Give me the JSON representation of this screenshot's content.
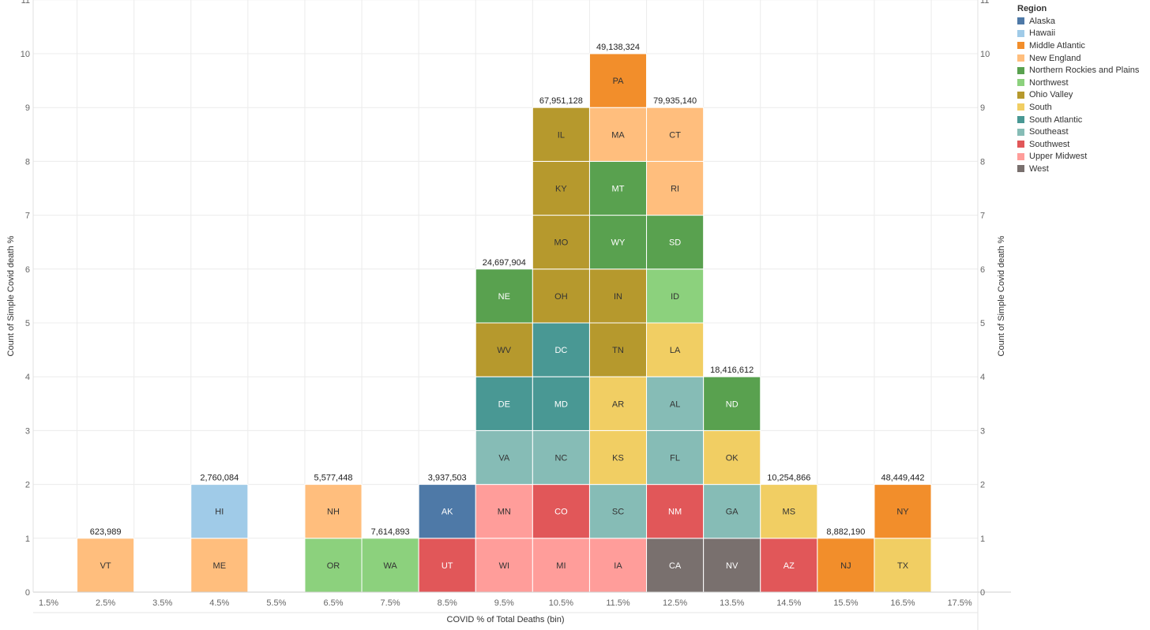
{
  "chart_data": {
    "type": "bar",
    "stacked": true,
    "xlabel": "COVID % of Total Deaths (bin)",
    "ylabel": "Count of Simple Covid death %",
    "ylabel_right": "Count of Simple Covid death %",
    "ylim": [
      0,
      11
    ],
    "yticks": [
      0,
      1,
      2,
      3,
      4,
      5,
      6,
      7,
      8,
      9,
      10,
      11
    ],
    "xticks": [
      "1.5%",
      "2.5%",
      "3.5%",
      "4.5%",
      "5.5%",
      "6.5%",
      "7.5%",
      "8.5%",
      "9.5%",
      "10.5%",
      "11.5%",
      "12.5%",
      "13.5%",
      "14.5%",
      "15.5%",
      "16.5%",
      "17.5%"
    ],
    "grid": true,
    "legend_position": "right",
    "legend_title": "Region",
    "regions": [
      {
        "name": "Alaska",
        "color": "#4e79a7"
      },
      {
        "name": "Hawaii",
        "color": "#a0cbe8"
      },
      {
        "name": "Middle Atlantic",
        "color": "#f28e2b"
      },
      {
        "name": "New England",
        "color": "#ffbe7d"
      },
      {
        "name": "Northern Rockies and Plains",
        "color": "#59a14f"
      },
      {
        "name": "Northwest",
        "color": "#8cd17d"
      },
      {
        "name": "Ohio Valley",
        "color": "#b6992d"
      },
      {
        "name": "South",
        "color": "#f1ce63"
      },
      {
        "name": "South Atlantic",
        "color": "#499894"
      },
      {
        "name": "Southeast",
        "color": "#86bcb6"
      },
      {
        "name": "Southwest",
        "color": "#e15759"
      },
      {
        "name": "Upper Midwest",
        "color": "#ff9d9a"
      },
      {
        "name": "West",
        "color": "#79706e"
      }
    ],
    "bins": [
      {
        "bin": "2.5%",
        "total": "623,989",
        "states": [
          {
            "abbr": "VT",
            "region": "New England"
          }
        ]
      },
      {
        "bin": "4.5%",
        "total": "2,760,084",
        "states": [
          {
            "abbr": "ME",
            "region": "New England"
          },
          {
            "abbr": "HI",
            "region": "Hawaii"
          }
        ]
      },
      {
        "bin": "6.5%",
        "total": "5,577,448",
        "states": [
          {
            "abbr": "OR",
            "region": "Northwest"
          },
          {
            "abbr": "NH",
            "region": "New England"
          }
        ]
      },
      {
        "bin": "7.5%",
        "total": "7,614,893",
        "states": [
          {
            "abbr": "WA",
            "region": "Northwest"
          }
        ]
      },
      {
        "bin": "8.5%",
        "total": "3,937,503",
        "states": [
          {
            "abbr": "UT",
            "region": "Southwest"
          },
          {
            "abbr": "AK",
            "region": "Alaska"
          }
        ]
      },
      {
        "bin": "9.5%",
        "total": "24,697,904",
        "states": [
          {
            "abbr": "WI",
            "region": "Upper Midwest"
          },
          {
            "abbr": "MN",
            "region": "Upper Midwest"
          },
          {
            "abbr": "VA",
            "region": "Southeast"
          },
          {
            "abbr": "DE",
            "region": "South Atlantic"
          },
          {
            "abbr": "WV",
            "region": "Ohio Valley"
          },
          {
            "abbr": "NE",
            "region": "Northern Rockies and Plains"
          }
        ]
      },
      {
        "bin": "10.5%",
        "total": "67,951,128",
        "states": [
          {
            "abbr": "MI",
            "region": "Upper Midwest"
          },
          {
            "abbr": "CO",
            "region": "Southwest"
          },
          {
            "abbr": "NC",
            "region": "Southeast"
          },
          {
            "abbr": "MD",
            "region": "South Atlantic"
          },
          {
            "abbr": "DC",
            "region": "South Atlantic"
          },
          {
            "abbr": "OH",
            "region": "Ohio Valley"
          },
          {
            "abbr": "MO",
            "region": "Ohio Valley"
          },
          {
            "abbr": "KY",
            "region": "Ohio Valley"
          },
          {
            "abbr": "IL",
            "region": "Ohio Valley"
          }
        ]
      },
      {
        "bin": "11.5%",
        "total": "49,138,324",
        "states": [
          {
            "abbr": "IA",
            "region": "Upper Midwest"
          },
          {
            "abbr": "SC",
            "region": "Southeast"
          },
          {
            "abbr": "KS",
            "region": "South"
          },
          {
            "abbr": "AR",
            "region": "South"
          },
          {
            "abbr": "TN",
            "region": "Ohio Valley"
          },
          {
            "abbr": "IN",
            "region": "Ohio Valley"
          },
          {
            "abbr": "WY",
            "region": "Northern Rockies and Plains"
          },
          {
            "abbr": "MT",
            "region": "Northern Rockies and Plains"
          },
          {
            "abbr": "MA",
            "region": "New England"
          },
          {
            "abbr": "PA",
            "region": "Middle Atlantic"
          }
        ]
      },
      {
        "bin": "12.5%",
        "total": "79,935,140",
        "states": [
          {
            "abbr": "CA",
            "region": "West"
          },
          {
            "abbr": "NM",
            "region": "Southwest"
          },
          {
            "abbr": "FL",
            "region": "Southeast"
          },
          {
            "abbr": "AL",
            "region": "Southeast"
          },
          {
            "abbr": "LA",
            "region": "South"
          },
          {
            "abbr": "ID",
            "region": "Northwest"
          },
          {
            "abbr": "SD",
            "region": "Northern Rockies and Plains"
          },
          {
            "abbr": "RI",
            "region": "New England"
          },
          {
            "abbr": "CT",
            "region": "New England"
          }
        ]
      },
      {
        "bin": "13.5%",
        "total": "18,416,612",
        "states": [
          {
            "abbr": "NV",
            "region": "West"
          },
          {
            "abbr": "GA",
            "region": "Southeast"
          },
          {
            "abbr": "OK",
            "region": "South"
          },
          {
            "abbr": "ND",
            "region": "Northern Rockies and Plains"
          }
        ]
      },
      {
        "bin": "14.5%",
        "total": "10,254,866",
        "states": [
          {
            "abbr": "AZ",
            "region": "Southwest"
          },
          {
            "abbr": "MS",
            "region": "South"
          }
        ]
      },
      {
        "bin": "15.5%",
        "total": "8,882,190",
        "states": [
          {
            "abbr": "NJ",
            "region": "Middle Atlantic"
          }
        ]
      },
      {
        "bin": "16.5%",
        "total": "48,449,442",
        "states": [
          {
            "abbr": "TX",
            "region": "South"
          },
          {
            "abbr": "NY",
            "region": "Middle Atlantic"
          }
        ]
      }
    ]
  }
}
